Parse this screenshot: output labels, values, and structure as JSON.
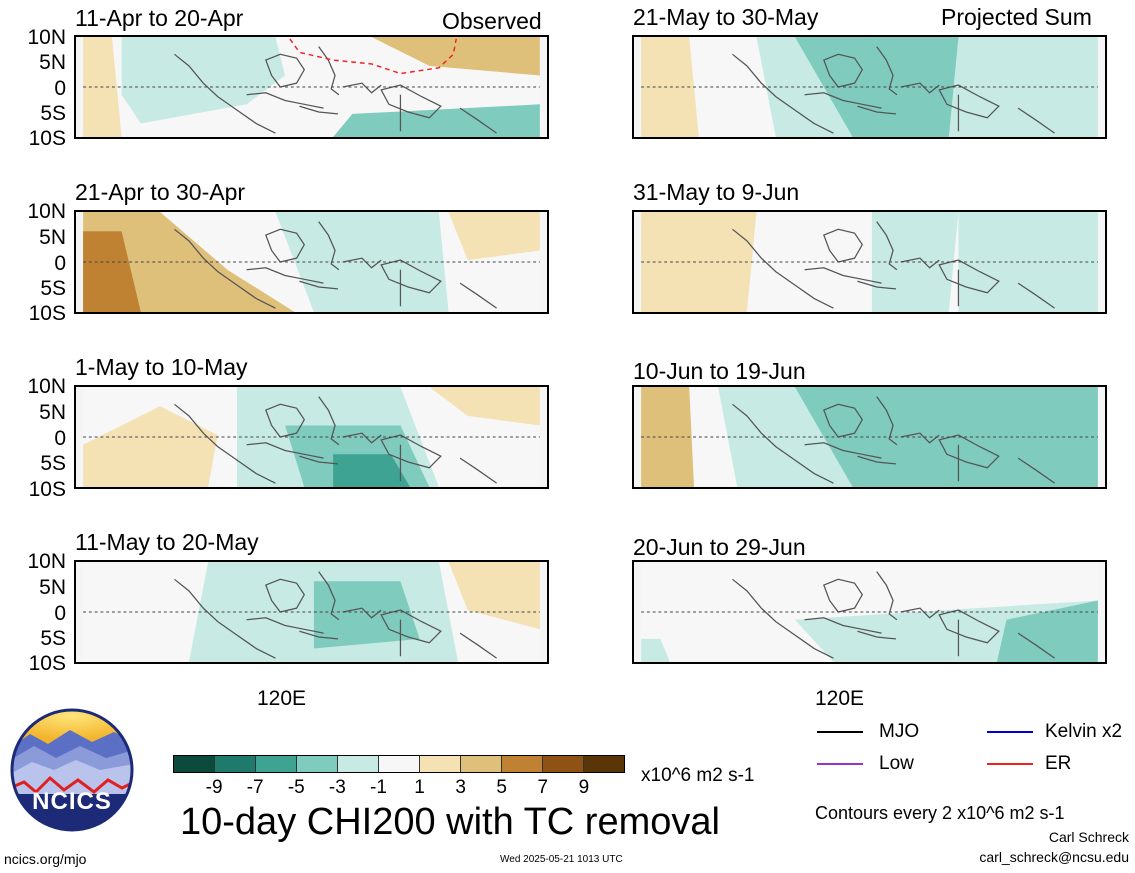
{
  "chart_data": {
    "type": "heatmap",
    "title": "10-day CHI200 with TC removal",
    "observed_label": "Observed",
    "projected_label": "Projected Sum",
    "y_tick_labels": [
      "10N",
      "5N",
      "0",
      "5S",
      "10S"
    ],
    "x_tick_label": "120E",
    "panels": [
      {
        "title": "11-Apr to 20-Apr",
        "column": "observed"
      },
      {
        "title": "21-Apr to 30-Apr",
        "column": "observed"
      },
      {
        "title": "1-May to 10-May",
        "column": "observed"
      },
      {
        "title": "11-May to 20-May",
        "column": "observed"
      },
      {
        "title": "21-May to 30-May",
        "column": "projected"
      },
      {
        "title": "31-May to 9-Jun",
        "column": "projected"
      },
      {
        "title": "10-Jun to 19-Jun",
        "column": "projected"
      },
      {
        "title": "20-Jun to 29-Jun",
        "column": "projected"
      }
    ],
    "colorbar": {
      "labels": [
        "-9",
        "-7",
        "-5",
        "-3",
        "-1",
        "1",
        "3",
        "5",
        "7",
        "9"
      ],
      "colors": [
        "#0c4a3e",
        "#1e7a6a",
        "#3fa393",
        "#7fcbbd",
        "#c7ebe4",
        "#f7f7f7",
        "#f4e2b5",
        "#dfc07a",
        "#bf8232",
        "#8d5214",
        "#5a3508"
      ],
      "units": "x10^6 m2 s-1"
    }
  },
  "legend": {
    "items": [
      {
        "label": "MJO",
        "color": "#000000"
      },
      {
        "label": "Kelvin x2",
        "color": "#0000cc"
      },
      {
        "label": "Low",
        "color": "#9933cc"
      },
      {
        "label": "ER",
        "color": "#ee2222"
      }
    ],
    "contours_note": "Contours every 2 x10^6 m2 s-1"
  },
  "logo": {
    "text": "NCICS"
  },
  "footer": {
    "left": "ncics.org/mjo",
    "timestamp": "Wed 2025-05-21 1013 UTC",
    "author": "Carl Schreck",
    "email": "carl_schreck@ncsu.edu"
  }
}
